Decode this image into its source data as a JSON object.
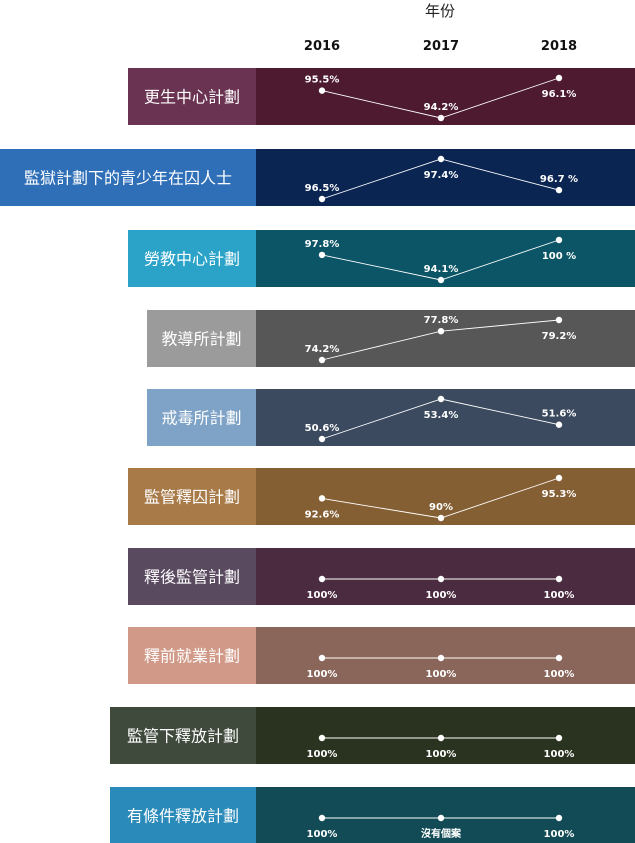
{
  "chart_data": {
    "type": "line",
    "title": "年份",
    "x": [
      "2016",
      "2017",
      "2018"
    ],
    "series": [
      {
        "name": "更生中心計劃",
        "values": [
          95.5,
          94.2,
          96.1
        ],
        "labels": [
          "95.5%",
          "94.2%",
          "96.1%"
        ],
        "label_color": "#6b3352",
        "band_color": "#4d1a30"
      },
      {
        "name": "監獄計劃下的青少年在囚人士",
        "values": [
          96.5,
          97.4,
          96.7
        ],
        "labels": [
          "96.5%",
          "97.4%",
          "96.7 %"
        ],
        "label_color": "#2f6fb8",
        "band_color": "#0b2553"
      },
      {
        "name": "勞教中心計劃",
        "values": [
          97.8,
          94.1,
          100
        ],
        "labels": [
          "97.8%",
          "94.1%",
          "100 %"
        ],
        "label_color": "#2ba3c9",
        "band_color": "#0b5566"
      },
      {
        "name": "教導所計劃",
        "values": [
          74.2,
          77.8,
          79.2
        ],
        "labels": [
          "74.2%",
          "77.8%",
          "79.2%"
        ],
        "label_color": "#9b9b9b",
        "band_color": "#575757"
      },
      {
        "name": "戒毒所計劃",
        "values": [
          50.6,
          53.4,
          51.6
        ],
        "labels": [
          "50.6%",
          "53.4%",
          "51.6%"
        ],
        "label_color": "#7fa3c6",
        "band_color": "#3b4a5e"
      },
      {
        "name": "監管釋囚計劃",
        "values": [
          92.6,
          90,
          95.3
        ],
        "labels": [
          "92.6%",
          "90%",
          "95.3%"
        ],
        "label_color": "#a87a48",
        "band_color": "#855f34"
      },
      {
        "name": "釋後監管計劃",
        "values": [
          100,
          100,
          100
        ],
        "labels": [
          "100%",
          "100%",
          "100%"
        ],
        "label_color": "#5a4a60",
        "band_color": "#4a2b3f"
      },
      {
        "name": "釋前就業計劃",
        "values": [
          100,
          100,
          100
        ],
        "labels": [
          "100%",
          "100%",
          "100%"
        ],
        "label_color": "#d19a88",
        "band_color": "#89655a"
      },
      {
        "name": "監管下釋放計劃",
        "values": [
          100,
          100,
          100
        ],
        "labels": [
          "100%",
          "100%",
          "100%"
        ],
        "label_color": "#3f4a3d",
        "band_color": "#2a331f"
      },
      {
        "name": "有條件釋放計劃",
        "values": [
          100,
          null,
          100
        ],
        "labels": [
          "100%",
          "沒有個案",
          "100%"
        ],
        "label_color": "#2a8ab9",
        "band_color": "#124b55"
      }
    ]
  }
}
